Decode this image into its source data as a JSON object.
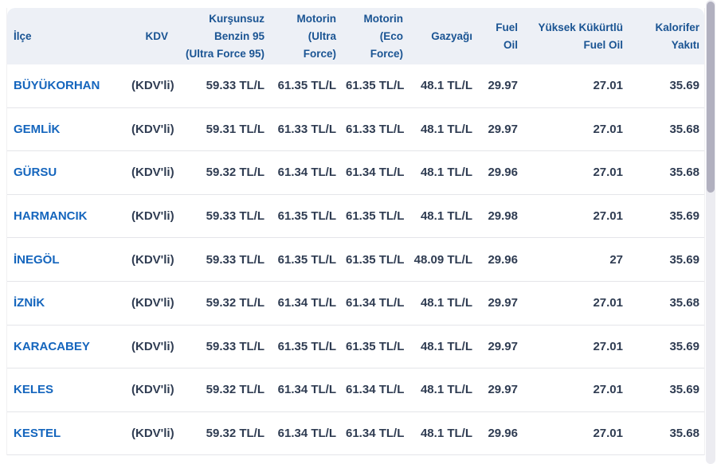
{
  "colors": {
    "header_bg": "#edf0f6",
    "header_text": "#1a5493",
    "district_link": "#1465bd",
    "cell_text": "#2f3c52",
    "row_border": "#e4e5e9",
    "scrollbar_thumb": "#b1b0bf"
  },
  "table": {
    "columns": [
      {
        "id": "ilce",
        "label": "İlçe",
        "align": "left"
      },
      {
        "id": "kdv",
        "label": "KDV",
        "align": "right"
      },
      {
        "id": "benzin95",
        "label": "Kurşunsuz\nBenzin 95\n(Ultra Force 95)",
        "align": "right"
      },
      {
        "id": "motorin-ultra",
        "label": "Motorin\n(Ultra\nForce)",
        "align": "right"
      },
      {
        "id": "motorin-eco",
        "label": "Motorin\n(Eco Force)",
        "align": "right"
      },
      {
        "id": "gazyagi",
        "label": "Gazyağı",
        "align": "right"
      },
      {
        "id": "fuel-oil",
        "label": "Fuel\nOil",
        "align": "right"
      },
      {
        "id": "yuksek-kukurtlu",
        "label": "Yüksek Kükürtlü\nFuel Oil",
        "align": "right"
      },
      {
        "id": "kalorifer-yakiti",
        "label": "Kalorifer\nYakıtı",
        "align": "right"
      }
    ],
    "rows": [
      {
        "ilce": "BÜYÜKORHAN",
        "cells": [
          "(KDV'li)",
          "59.33 TL/L",
          "61.35 TL/L",
          "61.35 TL/L",
          "48.1 TL/L",
          "29.97",
          "27.01",
          "35.69"
        ]
      },
      {
        "ilce": "GEMLİK",
        "cells": [
          "(KDV'li)",
          "59.31 TL/L",
          "61.33 TL/L",
          "61.33 TL/L",
          "48.1 TL/L",
          "29.97",
          "27.01",
          "35.68"
        ]
      },
      {
        "ilce": "GÜRSU",
        "cells": [
          "(KDV'li)",
          "59.32 TL/L",
          "61.34 TL/L",
          "61.34 TL/L",
          "48.1 TL/L",
          "29.96",
          "27.01",
          "35.68"
        ]
      },
      {
        "ilce": "HARMANCIK",
        "cells": [
          "(KDV'li)",
          "59.33 TL/L",
          "61.35 TL/L",
          "61.35 TL/L",
          "48.1 TL/L",
          "29.98",
          "27.01",
          "35.69"
        ]
      },
      {
        "ilce": "İNEGÖL",
        "cells": [
          "(KDV'li)",
          "59.33 TL/L",
          "61.35 TL/L",
          "61.35 TL/L",
          "48.09 TL/L",
          "29.96",
          "27",
          "35.69"
        ]
      },
      {
        "ilce": "İZNİK",
        "cells": [
          "(KDV'li)",
          "59.32 TL/L",
          "61.34 TL/L",
          "61.34 TL/L",
          "48.1 TL/L",
          "29.97",
          "27.01",
          "35.68"
        ]
      },
      {
        "ilce": "KARACABEY",
        "cells": [
          "(KDV'li)",
          "59.33 TL/L",
          "61.35 TL/L",
          "61.35 TL/L",
          "48.1 TL/L",
          "29.97",
          "27.01",
          "35.69"
        ]
      },
      {
        "ilce": "KELES",
        "cells": [
          "(KDV'li)",
          "59.32 TL/L",
          "61.34 TL/L",
          "61.34 TL/L",
          "48.1 TL/L",
          "29.97",
          "27.01",
          "35.69"
        ]
      },
      {
        "ilce": "KESTEL",
        "cells": [
          "(KDV'li)",
          "59.32 TL/L",
          "61.34 TL/L",
          "61.34 TL/L",
          "48.1 TL/L",
          "29.96",
          "27.01",
          "35.68"
        ]
      }
    ]
  }
}
